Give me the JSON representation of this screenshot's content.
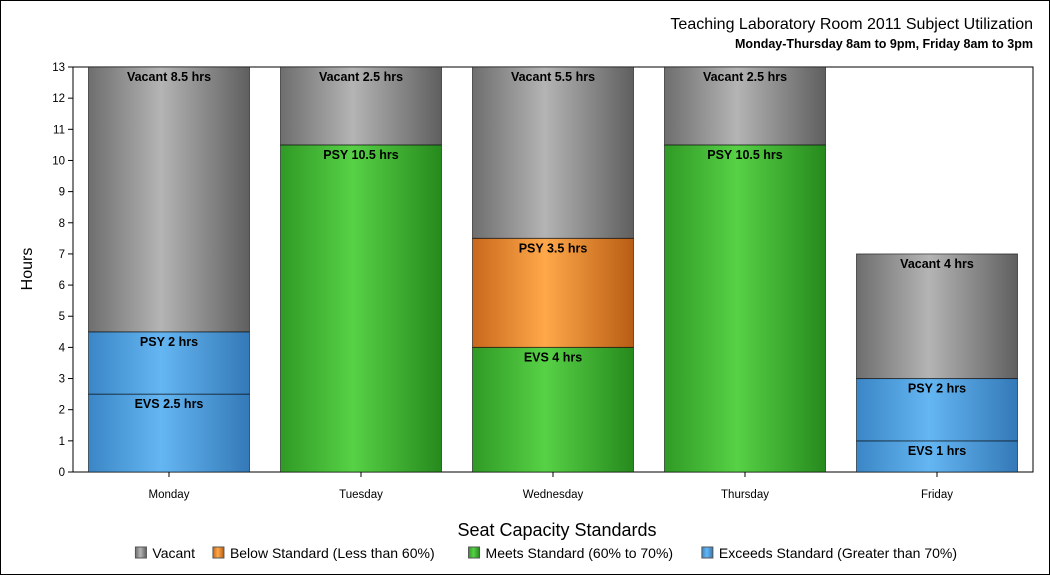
{
  "chart_data": {
    "type": "bar",
    "stacked": true,
    "title": "Teaching Laboratory Room 2011 Subject Utilization",
    "subtitle": "Monday-Thursday 8am to 9pm, Friday 8am to 3pm",
    "xlabel": "",
    "ylabel": "Hours",
    "ylim": [
      0,
      13
    ],
    "yticks": [
      0,
      1,
      2,
      3,
      4,
      5,
      6,
      7,
      8,
      9,
      10,
      11,
      12,
      13
    ],
    "categories": [
      "Monday",
      "Tuesday",
      "Wednesday",
      "Thursday",
      "Friday"
    ],
    "legend": {
      "title": "Seat Capacity Standards",
      "position": "bottom",
      "entries": [
        {
          "key": "vacant",
          "label": "Vacant",
          "color": "#8c8c8c"
        },
        {
          "key": "below",
          "label": "Below Standard (Less than 60%)",
          "color": "#f7a04a"
        },
        {
          "key": "meets",
          "label": "Meets Standard (60% to 70%)",
          "color": "#4cc13f"
        },
        {
          "key": "exceeds",
          "label": "Exceeds Standard (Greater than 70%)",
          "color": "#55a7e6"
        }
      ]
    },
    "bars": [
      {
        "category": "Monday",
        "segments": [
          {
            "standard": "exceeds",
            "value": 2.5,
            "label": "EVS 2.5 hrs"
          },
          {
            "standard": "exceeds",
            "value": 2,
            "label": "PSY 2 hrs"
          },
          {
            "standard": "vacant",
            "value": 8.5,
            "label": "Vacant 8.5 hrs"
          }
        ]
      },
      {
        "category": "Tuesday",
        "segments": [
          {
            "standard": "meets",
            "value": 10.5,
            "label": "PSY 10.5 hrs"
          },
          {
            "standard": "vacant",
            "value": 2.5,
            "label": "Vacant 2.5 hrs"
          }
        ]
      },
      {
        "category": "Wednesday",
        "segments": [
          {
            "standard": "meets",
            "value": 4,
            "label": "EVS 4 hrs"
          },
          {
            "standard": "below",
            "value": 3.5,
            "label": "PSY 3.5 hrs"
          },
          {
            "standard": "vacant",
            "value": 5.5,
            "label": "Vacant 5.5 hrs"
          }
        ]
      },
      {
        "category": "Thursday",
        "segments": [
          {
            "standard": "meets",
            "value": 10.5,
            "label": "PSY 10.5 hrs"
          },
          {
            "standard": "vacant",
            "value": 2.5,
            "label": "Vacant 2.5 hrs"
          }
        ]
      },
      {
        "category": "Friday",
        "segments": [
          {
            "standard": "exceeds",
            "value": 1,
            "label": "EVS 1 hrs"
          },
          {
            "standard": "exceeds",
            "value": 2,
            "label": "PSY 2 hrs"
          },
          {
            "standard": "vacant",
            "value": 4,
            "label": "Vacant 4 hrs"
          }
        ]
      }
    ],
    "grid": false
  }
}
